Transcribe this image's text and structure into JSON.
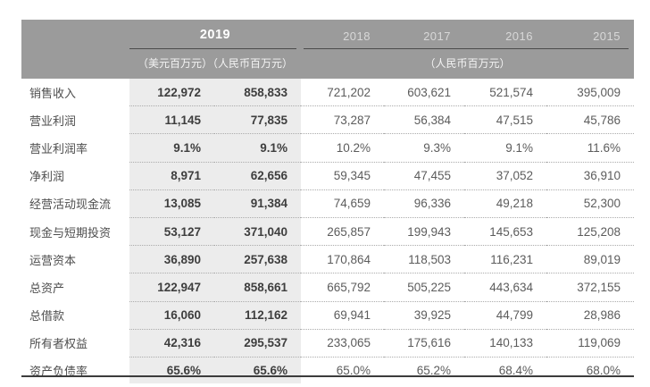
{
  "header": {
    "year_primary": "2019",
    "unit_primary": "（美元百万元）（人民币百万元）",
    "years": [
      "2018",
      "2017",
      "2016",
      "2015"
    ],
    "unit_secondary": "（人民币百万元）"
  },
  "table": {
    "column_keys": [
      "usd-2019",
      "rmb-2019",
      "2018",
      "2017",
      "2016",
      "2015"
    ],
    "rows": [
      {
        "label": "销售收入",
        "values": [
          "122,972",
          "858,833",
          "721,202",
          "603,621",
          "521,574",
          "395,009"
        ]
      },
      {
        "label": "营业利润",
        "values": [
          "11,145",
          "77,835",
          "73,287",
          "56,384",
          "47,515",
          "45,786"
        ]
      },
      {
        "label": "营业利润率",
        "values": [
          "9.1%",
          "9.1%",
          "10.2%",
          "9.3%",
          "9.1%",
          "11.6%"
        ]
      },
      {
        "label": "净利润",
        "values": [
          "8,971",
          "62,656",
          "59,345",
          "47,455",
          "37,052",
          "36,910"
        ]
      },
      {
        "label": "经营活动现金流",
        "values": [
          "13,085",
          "91,384",
          "74,659",
          "96,336",
          "49,218",
          "52,300"
        ]
      },
      {
        "label": "现金与短期投资",
        "values": [
          "53,127",
          "371,040",
          "265,857",
          "199,943",
          "145,653",
          "125,208"
        ]
      },
      {
        "label": "运营资本",
        "values": [
          "36,890",
          "257,638",
          "170,864",
          "118,503",
          "116,231",
          "89,019"
        ]
      },
      {
        "label": "总资产",
        "values": [
          "122,947",
          "858,661",
          "665,792",
          "505,225",
          "443,634",
          "372,155"
        ]
      },
      {
        "label": "总借款",
        "values": [
          "16,060",
          "112,162",
          "69,941",
          "39,925",
          "44,799",
          "28,986"
        ]
      },
      {
        "label": "所有者权益",
        "values": [
          "42,316",
          "295,537",
          "233,065",
          "175,616",
          "140,133",
          "119,069"
        ]
      },
      {
        "label": "资产负债率",
        "values": [
          "65.6%",
          "65.6%",
          "65.0%",
          "65.2%",
          "68.4%",
          "68.0%"
        ]
      }
    ]
  },
  "colors": {
    "header_bg": "#9b9b9b",
    "stripe_bg": "#ececec",
    "header_text": "#ffffff",
    "year_text": "#d8d8d8",
    "label_text": "#4e4e4e",
    "value_text": "#5c5c5c",
    "value_bold_text": "#3e3e3e",
    "bottom_rule": "#3c3c3c"
  }
}
